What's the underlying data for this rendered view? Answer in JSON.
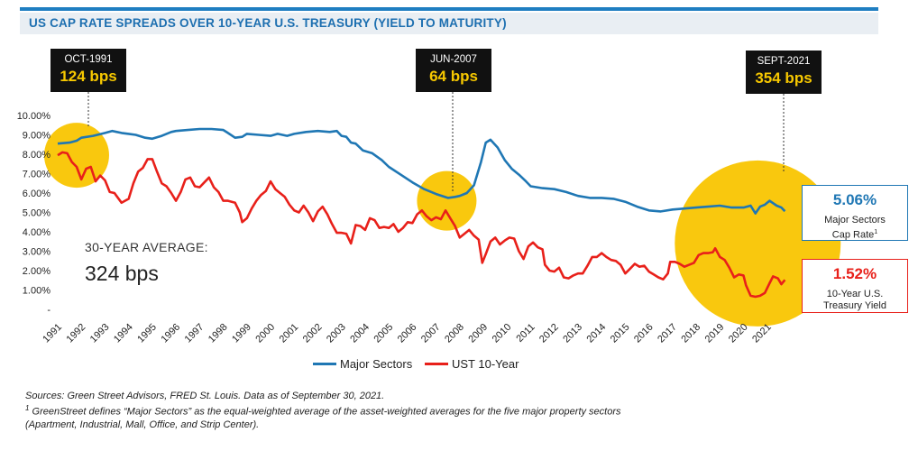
{
  "title": "US CAP RATE SPREADS OVER 10-YEAR U.S. TREASURY (YIELD TO MATURITY)",
  "callouts": [
    {
      "date": "OCT-1991",
      "bps": "124 bps"
    },
    {
      "date": "JUN-2007",
      "bps": "64 bps"
    },
    {
      "date": "SEPT-2021",
      "bps": "354 bps"
    }
  ],
  "average": {
    "label": "30-YEAR AVERAGE:",
    "value": "324 bps"
  },
  "end_values": {
    "major": {
      "value": "5.06%",
      "label1": "Major Sectors",
      "label2": "Cap Rate",
      "sup": "1",
      "color": "#1f77b4"
    },
    "ust": {
      "value": "1.52%",
      "label1": "10-Year U.S.",
      "label2": "Treasury Yield",
      "color": "#e8201a"
    }
  },
  "legend": [
    {
      "name": "Major Sectors",
      "color": "#1f77b4"
    },
    {
      "name": "UST 10-Year",
      "color": "#e8201a"
    }
  ],
  "notes": {
    "line1": "Sources: Green Street Advisors, FRED St. Louis. Data as of September 30, 2021.",
    "sup": "1",
    "line2": " GreenStreet defines “Major Sectors” as the equal-weighted average of the asset-weighted averages for the five major property sectors",
    "line3": "(Apartment, Industrial, Mall, Office, and Strip Center)."
  },
  "colors": {
    "major": "#1f77b4",
    "ust": "#e8201a",
    "highlight": "#f9c80e",
    "accent": "#1d6fb0"
  },
  "chart_data": {
    "type": "line",
    "xlim": [
      1991,
      2022
    ],
    "ylim": [
      0,
      10
    ],
    "x_ticks": [
      "1991",
      "1992",
      "1993",
      "1994",
      "1995",
      "1996",
      "1997",
      "1998",
      "1999",
      "2000",
      "2001",
      "2002",
      "2003",
      "2004",
      "2005",
      "2006",
      "2007",
      "2008",
      "2009",
      "2010",
      "2011",
      "2012",
      "2013",
      "2014",
      "2015",
      "2016",
      "2017",
      "2018",
      "2019",
      "2020",
      "2021"
    ],
    "y_ticks": [
      "-",
      "1.00%",
      "2.00%",
      "3.00%",
      "4.00%",
      "5.00%",
      "6.00%",
      "7.00%",
      "8.00%",
      "9.00%",
      "10.00%"
    ],
    "highlights": [
      {
        "x": 1991.8,
        "y": 7.95
      },
      {
        "x": 2007.45,
        "y": 5.6
      },
      {
        "x": 2020.6,
        "y": 3.4
      }
    ],
    "series": [
      {
        "name": "Major Sectors",
        "points": [
          [
            1991.0,
            8.55
          ],
          [
            1991.5,
            8.6
          ],
          [
            1991.8,
            8.7
          ],
          [
            1992.0,
            8.85
          ],
          [
            1992.5,
            8.95
          ],
          [
            1993.0,
            9.1
          ],
          [
            1993.3,
            9.2
          ],
          [
            1993.7,
            9.1
          ],
          [
            1994.0,
            9.05
          ],
          [
            1994.3,
            9.0
          ],
          [
            1994.7,
            8.85
          ],
          [
            1995.0,
            8.8
          ],
          [
            1995.4,
            8.95
          ],
          [
            1995.8,
            9.15
          ],
          [
            1996.0,
            9.2
          ],
          [
            1996.5,
            9.25
          ],
          [
            1997.0,
            9.3
          ],
          [
            1997.5,
            9.3
          ],
          [
            1998.0,
            9.25
          ],
          [
            1998.2,
            9.1
          ],
          [
            1998.5,
            8.85
          ],
          [
            1998.8,
            8.9
          ],
          [
            1999.0,
            9.05
          ],
          [
            1999.5,
            9.0
          ],
          [
            2000.0,
            8.95
          ],
          [
            2000.3,
            9.05
          ],
          [
            2000.7,
            8.95
          ],
          [
            2001.0,
            9.05
          ],
          [
            2001.5,
            9.15
          ],
          [
            2002.0,
            9.2
          ],
          [
            2002.5,
            9.15
          ],
          [
            2002.8,
            9.2
          ],
          [
            2003.0,
            8.95
          ],
          [
            2003.2,
            8.9
          ],
          [
            2003.4,
            8.6
          ],
          [
            2003.6,
            8.55
          ],
          [
            2003.9,
            8.2
          ],
          [
            2004.3,
            8.05
          ],
          [
            2004.7,
            7.7
          ],
          [
            2005.0,
            7.35
          ],
          [
            2005.5,
            6.95
          ],
          [
            2006.0,
            6.55
          ],
          [
            2006.5,
            6.2
          ],
          [
            2007.0,
            5.95
          ],
          [
            2007.5,
            5.75
          ],
          [
            2007.8,
            5.8
          ],
          [
            2008.0,
            5.85
          ],
          [
            2008.3,
            6.0
          ],
          [
            2008.6,
            6.4
          ],
          [
            2008.9,
            7.6
          ],
          [
            2009.1,
            8.6
          ],
          [
            2009.3,
            8.75
          ],
          [
            2009.6,
            8.35
          ],
          [
            2009.9,
            7.7
          ],
          [
            2010.2,
            7.25
          ],
          [
            2010.5,
            6.95
          ],
          [
            2010.8,
            6.6
          ],
          [
            2011.0,
            6.35
          ],
          [
            2011.5,
            6.25
          ],
          [
            2012.0,
            6.2
          ],
          [
            2012.5,
            6.05
          ],
          [
            2013.0,
            5.85
          ],
          [
            2013.5,
            5.75
          ],
          [
            2014.0,
            5.75
          ],
          [
            2014.5,
            5.7
          ],
          [
            2015.0,
            5.55
          ],
          [
            2015.5,
            5.3
          ],
          [
            2016.0,
            5.1
          ],
          [
            2016.5,
            5.05
          ],
          [
            2017.0,
            5.15
          ],
          [
            2017.5,
            5.2
          ],
          [
            2018.0,
            5.25
          ],
          [
            2018.5,
            5.3
          ],
          [
            2019.0,
            5.35
          ],
          [
            2019.5,
            5.25
          ],
          [
            2020.0,
            5.25
          ],
          [
            2020.3,
            5.35
          ],
          [
            2020.5,
            4.95
          ],
          [
            2020.7,
            5.3
          ],
          [
            2020.9,
            5.4
          ],
          [
            2021.1,
            5.6
          ],
          [
            2021.4,
            5.35
          ],
          [
            2021.6,
            5.25
          ],
          [
            2021.75,
            5.06
          ]
        ]
      },
      {
        "name": "UST 10-Year",
        "points": [
          [
            1991.0,
            7.95
          ],
          [
            1991.2,
            8.1
          ],
          [
            1991.4,
            8.05
          ],
          [
            1991.6,
            7.6
          ],
          [
            1991.8,
            7.35
          ],
          [
            1992.0,
            6.7
          ],
          [
            1992.2,
            7.25
          ],
          [
            1992.4,
            7.35
          ],
          [
            1992.6,
            6.6
          ],
          [
            1992.8,
            6.9
          ],
          [
            1993.0,
            6.65
          ],
          [
            1993.2,
            6.05
          ],
          [
            1993.4,
            6.0
          ],
          [
            1993.7,
            5.5
          ],
          [
            1994.0,
            5.7
          ],
          [
            1994.2,
            6.5
          ],
          [
            1994.4,
            7.1
          ],
          [
            1994.6,
            7.3
          ],
          [
            1994.8,
            7.75
          ],
          [
            1995.0,
            7.75
          ],
          [
            1995.2,
            7.1
          ],
          [
            1995.4,
            6.5
          ],
          [
            1995.6,
            6.35
          ],
          [
            1995.8,
            6.0
          ],
          [
            1996.0,
            5.6
          ],
          [
            1996.2,
            6.05
          ],
          [
            1996.4,
            6.7
          ],
          [
            1996.6,
            6.8
          ],
          [
            1996.8,
            6.35
          ],
          [
            1997.0,
            6.3
          ],
          [
            1997.2,
            6.55
          ],
          [
            1997.4,
            6.8
          ],
          [
            1997.6,
            6.3
          ],
          [
            1997.8,
            6.05
          ],
          [
            1998.0,
            5.6
          ],
          [
            1998.2,
            5.6
          ],
          [
            1998.5,
            5.5
          ],
          [
            1998.7,
            5.0
          ],
          [
            1998.8,
            4.5
          ],
          [
            1999.0,
            4.7
          ],
          [
            1999.2,
            5.2
          ],
          [
            1999.4,
            5.6
          ],
          [
            1999.6,
            5.9
          ],
          [
            1999.8,
            6.1
          ],
          [
            2000.0,
            6.6
          ],
          [
            2000.2,
            6.2
          ],
          [
            2000.4,
            6.0
          ],
          [
            2000.6,
            5.8
          ],
          [
            2000.8,
            5.4
          ],
          [
            2001.0,
            5.1
          ],
          [
            2001.2,
            5.0
          ],
          [
            2001.4,
            5.35
          ],
          [
            2001.6,
            5.0
          ],
          [
            2001.8,
            4.55
          ],
          [
            2002.0,
            5.05
          ],
          [
            2002.2,
            5.3
          ],
          [
            2002.4,
            4.9
          ],
          [
            2002.6,
            4.4
          ],
          [
            2002.8,
            3.95
          ],
          [
            2003.0,
            3.95
          ],
          [
            2003.2,
            3.9
          ],
          [
            2003.4,
            3.4
          ],
          [
            2003.6,
            4.35
          ],
          [
            2003.8,
            4.3
          ],
          [
            2004.0,
            4.1
          ],
          [
            2004.2,
            4.7
          ],
          [
            2004.4,
            4.6
          ],
          [
            2004.6,
            4.2
          ],
          [
            2004.8,
            4.25
          ],
          [
            2005.0,
            4.2
          ],
          [
            2005.2,
            4.4
          ],
          [
            2005.4,
            4.0
          ],
          [
            2005.6,
            4.2
          ],
          [
            2005.8,
            4.5
          ],
          [
            2006.0,
            4.45
          ],
          [
            2006.2,
            4.9
          ],
          [
            2006.4,
            5.1
          ],
          [
            2006.6,
            4.8
          ],
          [
            2006.8,
            4.6
          ],
          [
            2007.0,
            4.75
          ],
          [
            2007.2,
            4.65
          ],
          [
            2007.4,
            5.1
          ],
          [
            2007.6,
            4.7
          ],
          [
            2007.8,
            4.3
          ],
          [
            2008.0,
            3.7
          ],
          [
            2008.2,
            3.9
          ],
          [
            2008.4,
            4.1
          ],
          [
            2008.6,
            3.8
          ],
          [
            2008.8,
            3.6
          ],
          [
            2008.95,
            2.4
          ],
          [
            2009.1,
            2.85
          ],
          [
            2009.3,
            3.5
          ],
          [
            2009.5,
            3.7
          ],
          [
            2009.7,
            3.35
          ],
          [
            2009.9,
            3.55
          ],
          [
            2010.1,
            3.7
          ],
          [
            2010.3,
            3.65
          ],
          [
            2010.5,
            3.0
          ],
          [
            2010.7,
            2.6
          ],
          [
            2010.9,
            3.25
          ],
          [
            2011.1,
            3.45
          ],
          [
            2011.3,
            3.2
          ],
          [
            2011.5,
            3.1
          ],
          [
            2011.6,
            2.3
          ],
          [
            2011.8,
            2.0
          ],
          [
            2012.0,
            1.95
          ],
          [
            2012.2,
            2.15
          ],
          [
            2012.4,
            1.65
          ],
          [
            2012.6,
            1.6
          ],
          [
            2012.8,
            1.75
          ],
          [
            2013.0,
            1.85
          ],
          [
            2013.2,
            1.85
          ],
          [
            2013.4,
            2.25
          ],
          [
            2013.6,
            2.7
          ],
          [
            2013.8,
            2.7
          ],
          [
            2014.0,
            2.9
          ],
          [
            2014.2,
            2.7
          ],
          [
            2014.4,
            2.55
          ],
          [
            2014.6,
            2.5
          ],
          [
            2014.8,
            2.3
          ],
          [
            2015.0,
            1.85
          ],
          [
            2015.2,
            2.1
          ],
          [
            2015.4,
            2.35
          ],
          [
            2015.6,
            2.2
          ],
          [
            2015.8,
            2.25
          ],
          [
            2016.0,
            1.95
          ],
          [
            2016.2,
            1.8
          ],
          [
            2016.4,
            1.65
          ],
          [
            2016.6,
            1.55
          ],
          [
            2016.8,
            1.85
          ],
          [
            2016.9,
            2.45
          ],
          [
            2017.1,
            2.45
          ],
          [
            2017.3,
            2.35
          ],
          [
            2017.5,
            2.2
          ],
          [
            2017.7,
            2.3
          ],
          [
            2017.9,
            2.4
          ],
          [
            2018.1,
            2.8
          ],
          [
            2018.3,
            2.9
          ],
          [
            2018.5,
            2.9
          ],
          [
            2018.7,
            2.95
          ],
          [
            2018.8,
            3.15
          ],
          [
            2019.0,
            2.7
          ],
          [
            2019.2,
            2.55
          ],
          [
            2019.4,
            2.15
          ],
          [
            2019.6,
            1.65
          ],
          [
            2019.8,
            1.8
          ],
          [
            2020.0,
            1.75
          ],
          [
            2020.1,
            1.25
          ],
          [
            2020.3,
            0.7
          ],
          [
            2020.5,
            0.65
          ],
          [
            2020.7,
            0.7
          ],
          [
            2020.9,
            0.85
          ],
          [
            2021.1,
            1.35
          ],
          [
            2021.25,
            1.7
          ],
          [
            2021.45,
            1.6
          ],
          [
            2021.6,
            1.3
          ],
          [
            2021.75,
            1.52
          ]
        ]
      }
    ]
  }
}
